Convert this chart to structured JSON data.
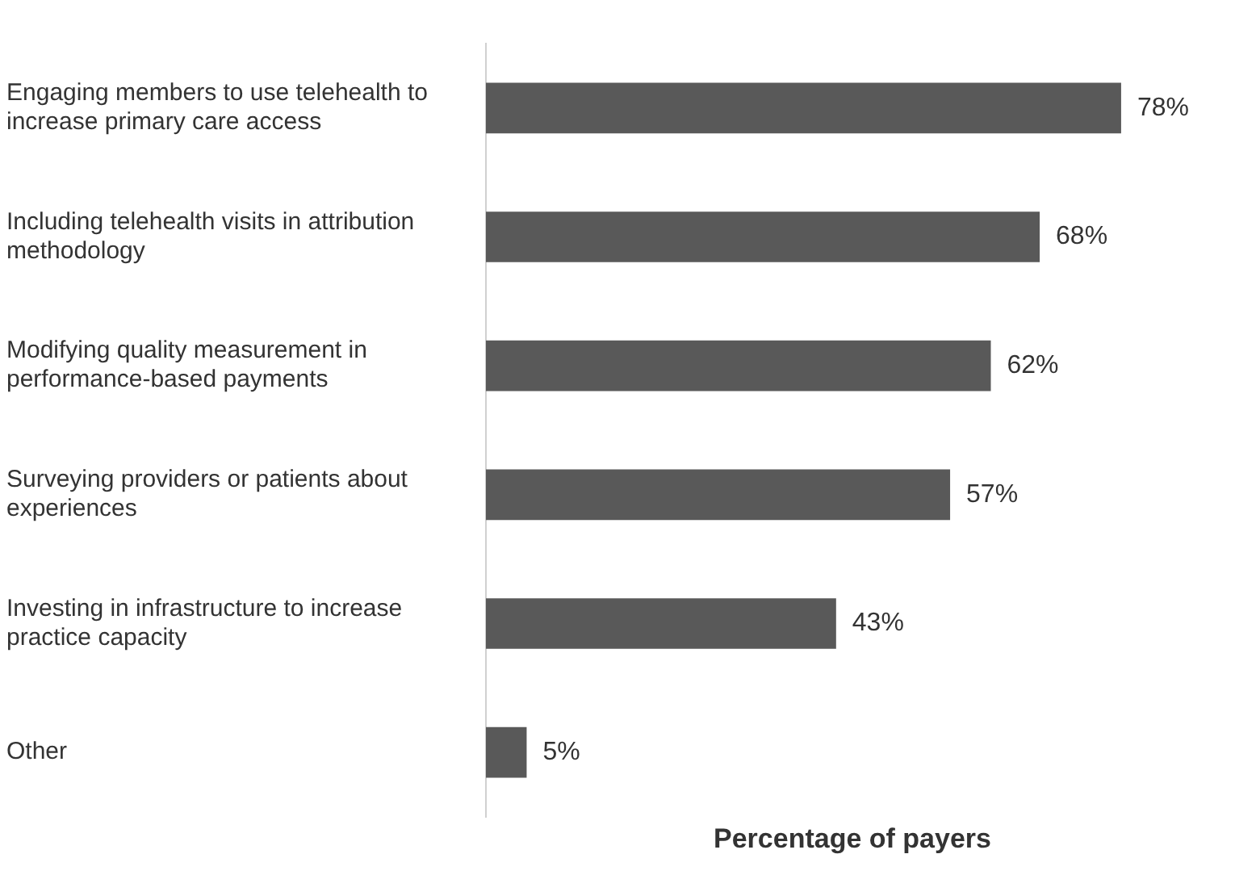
{
  "chart_data": {
    "type": "bar",
    "orientation": "horizontal",
    "xlabel": "Percentage of payers",
    "categories": [
      "Engaging members to use telehealth to increase primary care access",
      "Including telehealth visits in attribution methodology",
      "Modifying quality measurement in performance-based payments",
      "Surveying providers or patients about experiences",
      "Investing in infrastructure to increase practice capacity",
      "Other"
    ],
    "values": [
      78,
      68,
      62,
      57,
      43,
      5
    ],
    "value_labels": [
      "78%",
      "68%",
      "62%",
      "57%",
      "43%",
      "5%"
    ],
    "color": "#595959",
    "grid": false,
    "legend": false,
    "tick_labels": "y"
  }
}
